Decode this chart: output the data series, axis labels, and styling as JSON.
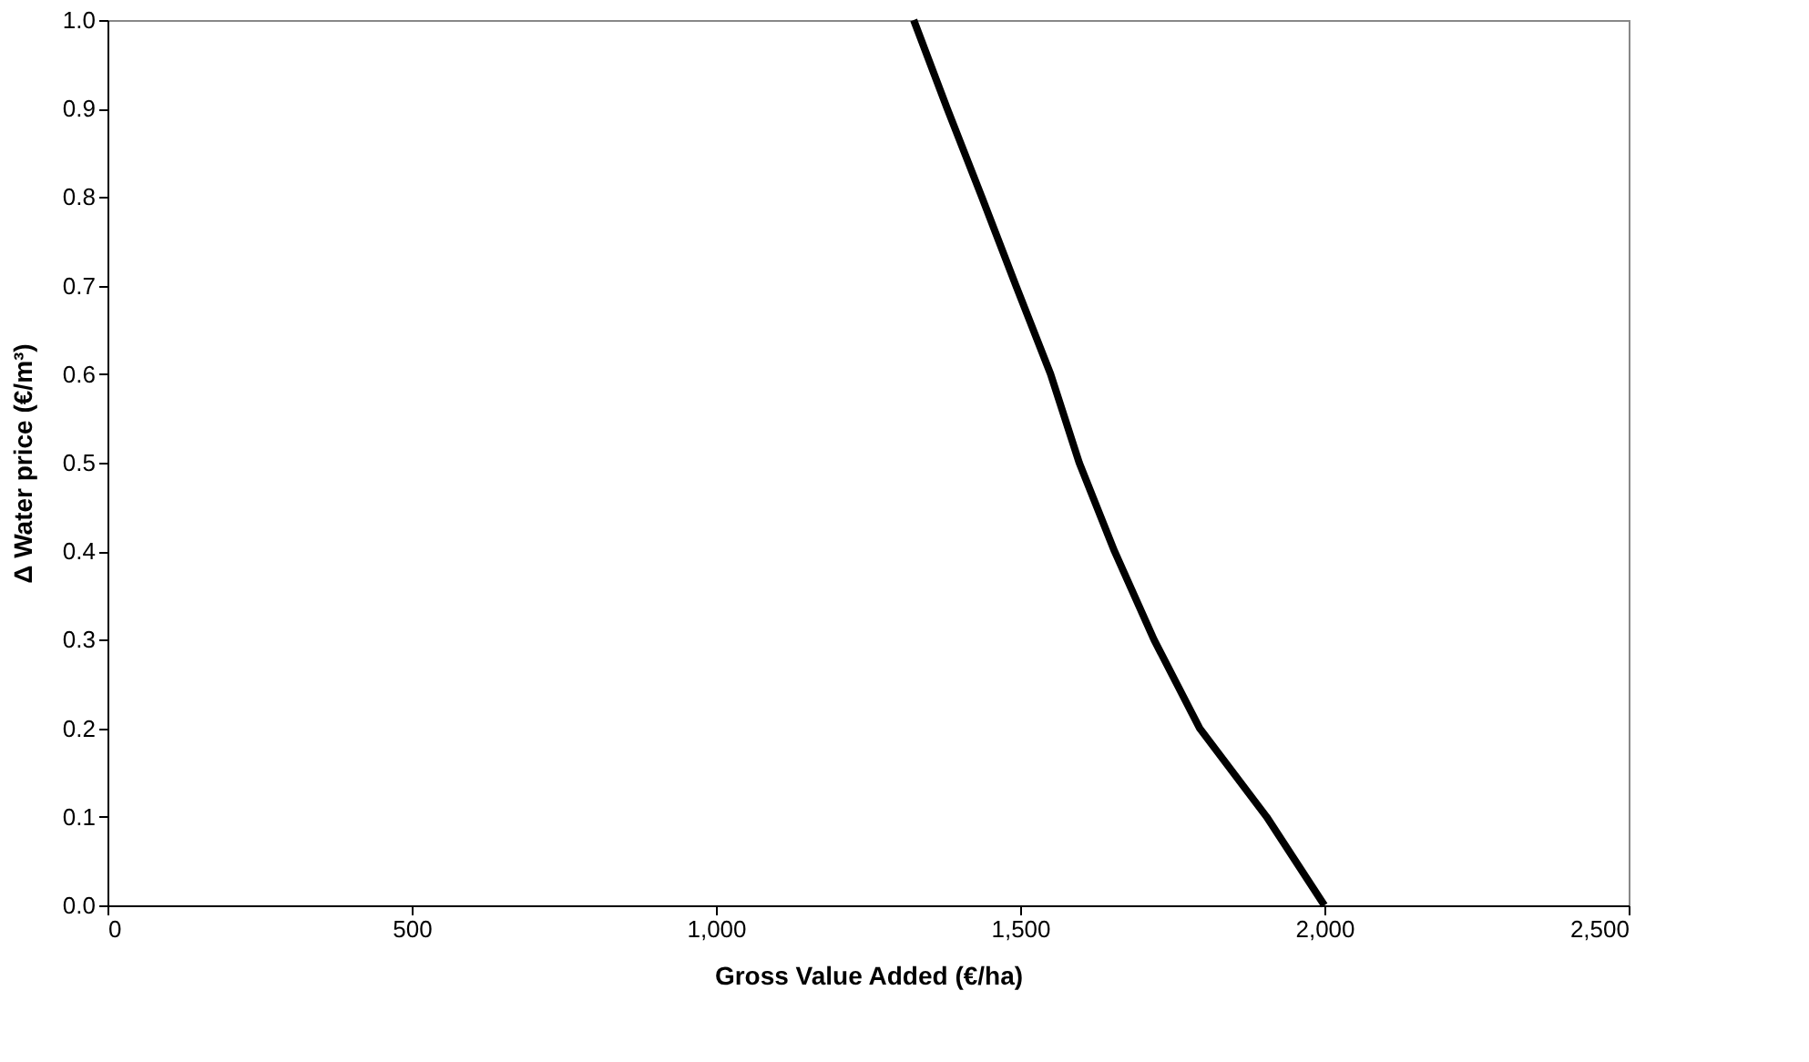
{
  "chart_data": {
    "type": "line",
    "xlabel": "Gross Value Added (€/ha)",
    "ylabel": "Δ Water price (€/m³)",
    "x": [
      1325,
      1380,
      1437,
      1493,
      1550,
      1597,
      1655,
      1720,
      1795,
      1905,
      2000
    ],
    "series": [
      {
        "color": "#000000",
        "values": [
          1.0,
          0.9,
          0.8,
          0.7,
          0.6,
          0.5,
          0.4,
          0.3,
          0.2,
          0.1,
          0.0
        ]
      }
    ],
    "xlim": [
      0,
      2500
    ],
    "xticks": [
      {
        "value": 0,
        "label": "0"
      },
      {
        "value": 500,
        "label": "500"
      },
      {
        "value": 1000,
        "label": "1,000"
      },
      {
        "value": 1500,
        "label": "1,500"
      },
      {
        "value": 2000,
        "label": "2,000"
      },
      {
        "value": 2500,
        "label": "2,500"
      }
    ],
    "ylim": [
      0,
      1
    ],
    "yticks": [
      {
        "value": 0,
        "label": "0.0"
      },
      {
        "value": 0.1,
        "label": "0.1"
      },
      {
        "value": 0.2,
        "label": "0.2"
      },
      {
        "value": 0.3,
        "label": "0.3"
      },
      {
        "value": 0.4,
        "label": "0.4"
      },
      {
        "value": 0.5,
        "label": "0.5"
      },
      {
        "value": 0.6,
        "label": "0.6"
      },
      {
        "value": 0.7,
        "label": "0.7"
      },
      {
        "value": 0.8,
        "label": "0.8"
      },
      {
        "value": 0.9,
        "label": "0.9"
      },
      {
        "value": 1.0,
        "label": "1.0"
      }
    ],
    "grid": false,
    "legend": false,
    "marker": "none",
    "line_style": "solid"
  }
}
